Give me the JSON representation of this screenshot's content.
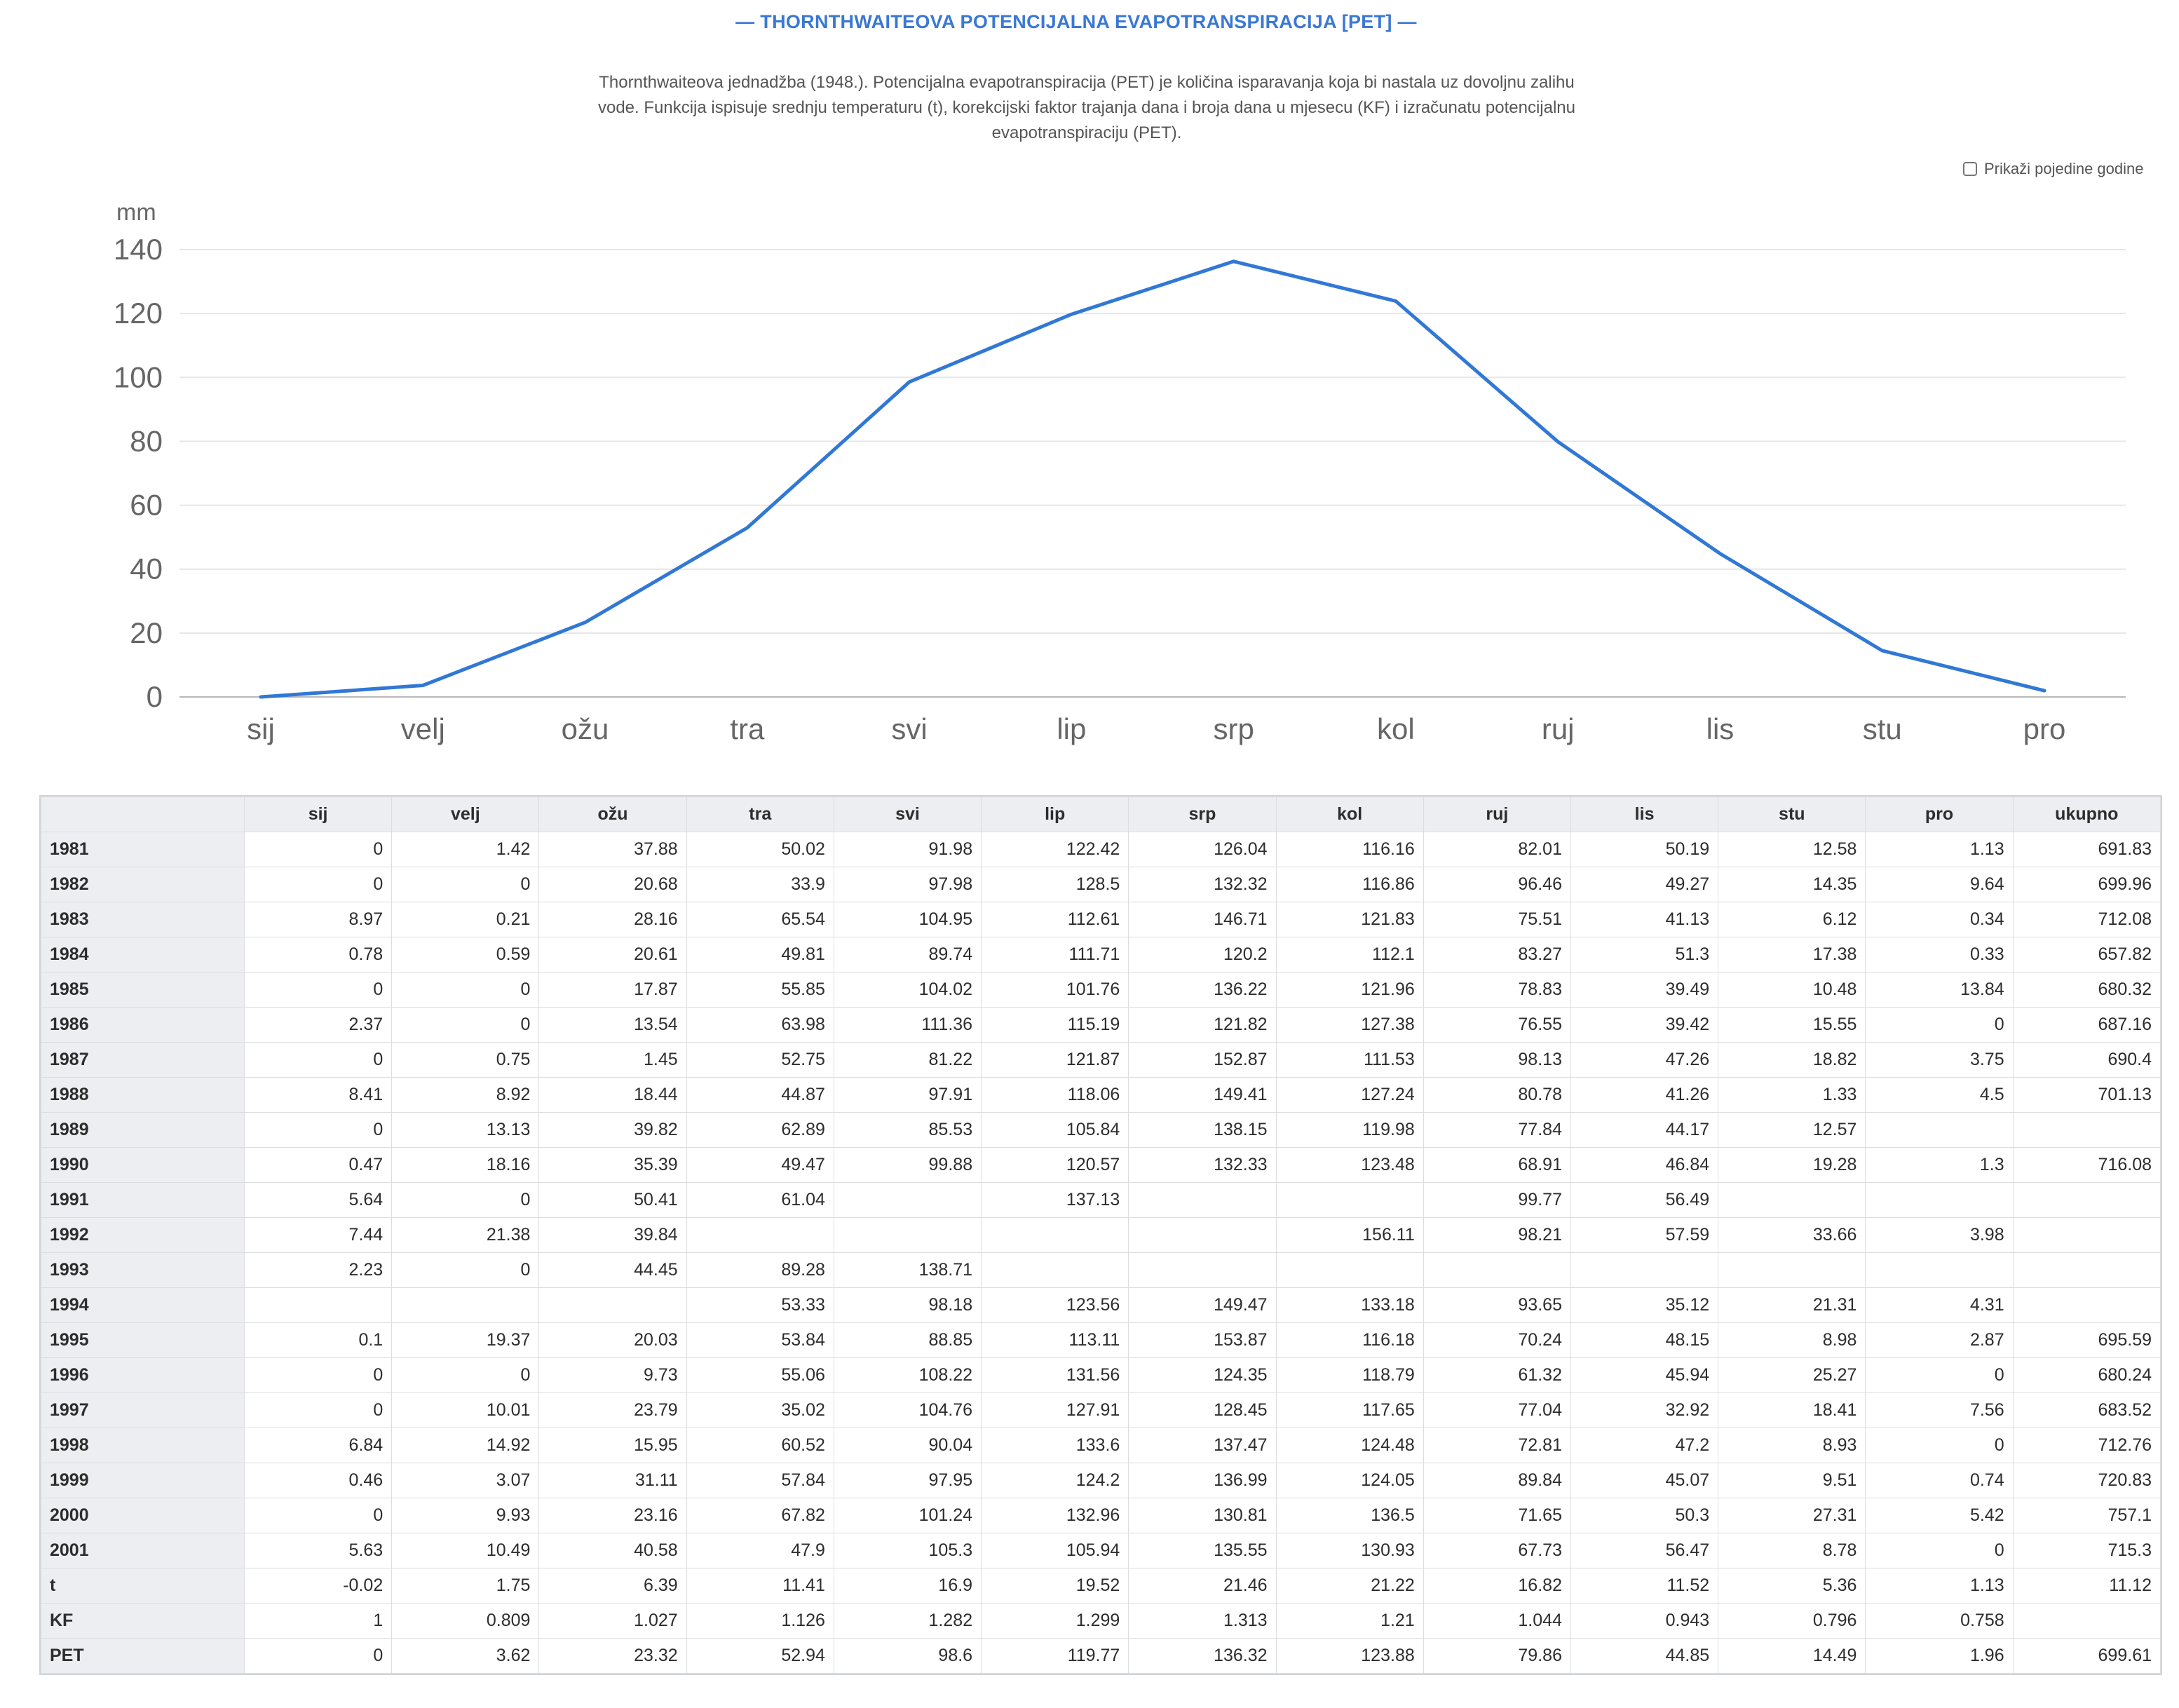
{
  "header": {
    "title": "— THORNTHWAITEOVA POTENCIJALNA EVAPOTRANSPIRACIJA [PET] —",
    "description": "Thornthwaiteova jednadžba (1948.). Potencijalna evapotranspiracija (PET) je količina isparavanja koja bi nastala uz dovoljnu zalihu vode. Funkcija ispisuje srednju temperaturu (t), korekcijski faktor trajanja dana i broja dana u mjesecu (KF) i izračunatu potencijalnu evapotranspiraciju (PET)."
  },
  "controls": {
    "show_years_label": "Prikaži pojedine godine",
    "show_years_checked": false
  },
  "chart_data": {
    "type": "line",
    "categories": [
      "sij",
      "velj",
      "ožu",
      "tra",
      "svi",
      "lip",
      "srp",
      "kol",
      "ruj",
      "lis",
      "stu",
      "pro"
    ],
    "series": [
      {
        "values": [
          0,
          3.62,
          23.32,
          52.94,
          98.6,
          119.77,
          136.32,
          123.88,
          79.86,
          44.85,
          14.49,
          1.96
        ],
        "color": "#3178d6"
      }
    ],
    "ylabel": "mm",
    "ylim": [
      0,
      140
    ],
    "yticks": [
      0,
      20,
      40,
      60,
      80,
      100,
      120,
      140
    ],
    "grid": true,
    "legend": "none"
  },
  "table": {
    "columns": [
      "",
      "sij",
      "velj",
      "ožu",
      "tra",
      "svi",
      "lip",
      "srp",
      "kol",
      "ruj",
      "lis",
      "stu",
      "pro",
      "ukupno"
    ],
    "rows": [
      {
        "label": "1981",
        "cells": [
          "0",
          "1.42",
          "37.88",
          "50.02",
          "91.98",
          "122.42",
          "126.04",
          "116.16",
          "82.01",
          "50.19",
          "12.58",
          "1.13",
          "691.83"
        ]
      },
      {
        "label": "1982",
        "cells": [
          "0",
          "0",
          "20.68",
          "33.9",
          "97.98",
          "128.5",
          "132.32",
          "116.86",
          "96.46",
          "49.27",
          "14.35",
          "9.64",
          "699.96"
        ]
      },
      {
        "label": "1983",
        "cells": [
          "8.97",
          "0.21",
          "28.16",
          "65.54",
          "104.95",
          "112.61",
          "146.71",
          "121.83",
          "75.51",
          "41.13",
          "6.12",
          "0.34",
          "712.08"
        ]
      },
      {
        "label": "1984",
        "cells": [
          "0.78",
          "0.59",
          "20.61",
          "49.81",
          "89.74",
          "111.71",
          "120.2",
          "112.1",
          "83.27",
          "51.3",
          "17.38",
          "0.33",
          "657.82"
        ]
      },
      {
        "label": "1985",
        "cells": [
          "0",
          "0",
          "17.87",
          "55.85",
          "104.02",
          "101.76",
          "136.22",
          "121.96",
          "78.83",
          "39.49",
          "10.48",
          "13.84",
          "680.32"
        ]
      },
      {
        "label": "1986",
        "cells": [
          "2.37",
          "0",
          "13.54",
          "63.98",
          "111.36",
          "115.19",
          "121.82",
          "127.38",
          "76.55",
          "39.42",
          "15.55",
          "0",
          "687.16"
        ]
      },
      {
        "label": "1987",
        "cells": [
          "0",
          "0.75",
          "1.45",
          "52.75",
          "81.22",
          "121.87",
          "152.87",
          "111.53",
          "98.13",
          "47.26",
          "18.82",
          "3.75",
          "690.4"
        ]
      },
      {
        "label": "1988",
        "cells": [
          "8.41",
          "8.92",
          "18.44",
          "44.87",
          "97.91",
          "118.06",
          "149.41",
          "127.24",
          "80.78",
          "41.26",
          "1.33",
          "4.5",
          "701.13"
        ]
      },
      {
        "label": "1989",
        "cells": [
          "0",
          "13.13",
          "39.82",
          "62.89",
          "85.53",
          "105.84",
          "138.15",
          "119.98",
          "77.84",
          "44.17",
          "12.57",
          "",
          ""
        ]
      },
      {
        "label": "1990",
        "cells": [
          "0.47",
          "18.16",
          "35.39",
          "49.47",
          "99.88",
          "120.57",
          "132.33",
          "123.48",
          "68.91",
          "46.84",
          "19.28",
          "1.3",
          "716.08"
        ]
      },
      {
        "label": "1991",
        "cells": [
          "5.64",
          "0",
          "50.41",
          "61.04",
          "",
          "137.13",
          "",
          "",
          "99.77",
          "56.49",
          "",
          "",
          ""
        ]
      },
      {
        "label": "1992",
        "cells": [
          "7.44",
          "21.38",
          "39.84",
          "",
          "",
          "",
          "",
          "156.11",
          "98.21",
          "57.59",
          "33.66",
          "3.98",
          ""
        ]
      },
      {
        "label": "1993",
        "cells": [
          "2.23",
          "0",
          "44.45",
          "89.28",
          "138.71",
          "",
          "",
          "",
          "",
          "",
          "",
          "",
          ""
        ]
      },
      {
        "label": "1994",
        "cells": [
          "",
          "",
          "",
          "53.33",
          "98.18",
          "123.56",
          "149.47",
          "133.18",
          "93.65",
          "35.12",
          "21.31",
          "4.31",
          ""
        ]
      },
      {
        "label": "1995",
        "cells": [
          "0.1",
          "19.37",
          "20.03",
          "53.84",
          "88.85",
          "113.11",
          "153.87",
          "116.18",
          "70.24",
          "48.15",
          "8.98",
          "2.87",
          "695.59"
        ]
      },
      {
        "label": "1996",
        "cells": [
          "0",
          "0",
          "9.73",
          "55.06",
          "108.22",
          "131.56",
          "124.35",
          "118.79",
          "61.32",
          "45.94",
          "25.27",
          "0",
          "680.24"
        ]
      },
      {
        "label": "1997",
        "cells": [
          "0",
          "10.01",
          "23.79",
          "35.02",
          "104.76",
          "127.91",
          "128.45",
          "117.65",
          "77.04",
          "32.92",
          "18.41",
          "7.56",
          "683.52"
        ]
      },
      {
        "label": "1998",
        "cells": [
          "6.84",
          "14.92",
          "15.95",
          "60.52",
          "90.04",
          "133.6",
          "137.47",
          "124.48",
          "72.81",
          "47.2",
          "8.93",
          "0",
          "712.76"
        ]
      },
      {
        "label": "1999",
        "cells": [
          "0.46",
          "3.07",
          "31.11",
          "57.84",
          "97.95",
          "124.2",
          "136.99",
          "124.05",
          "89.84",
          "45.07",
          "9.51",
          "0.74",
          "720.83"
        ]
      },
      {
        "label": "2000",
        "cells": [
          "0",
          "9.93",
          "23.16",
          "67.82",
          "101.24",
          "132.96",
          "130.81",
          "136.5",
          "71.65",
          "50.3",
          "27.31",
          "5.42",
          "757.1"
        ]
      },
      {
        "label": "2001",
        "cells": [
          "5.63",
          "10.49",
          "40.58",
          "47.9",
          "105.3",
          "105.94",
          "135.55",
          "130.93",
          "67.73",
          "56.47",
          "8.78",
          "0",
          "715.3"
        ]
      },
      {
        "label": "t",
        "cells": [
          "-0.02",
          "1.75",
          "6.39",
          "11.41",
          "16.9",
          "19.52",
          "21.46",
          "21.22",
          "16.82",
          "11.52",
          "5.36",
          "1.13",
          "11.12"
        ]
      },
      {
        "label": "KF",
        "cells": [
          "1",
          "0.809",
          "1.027",
          "1.126",
          "1.282",
          "1.299",
          "1.313",
          "1.21",
          "1.044",
          "0.943",
          "0.796",
          "0.758",
          ""
        ]
      },
      {
        "label": "PET",
        "cells": [
          "0",
          "3.62",
          "23.32",
          "52.94",
          "98.6",
          "119.77",
          "136.32",
          "123.88",
          "79.86",
          "44.85",
          "14.49",
          "1.96",
          "699.61"
        ]
      }
    ]
  }
}
